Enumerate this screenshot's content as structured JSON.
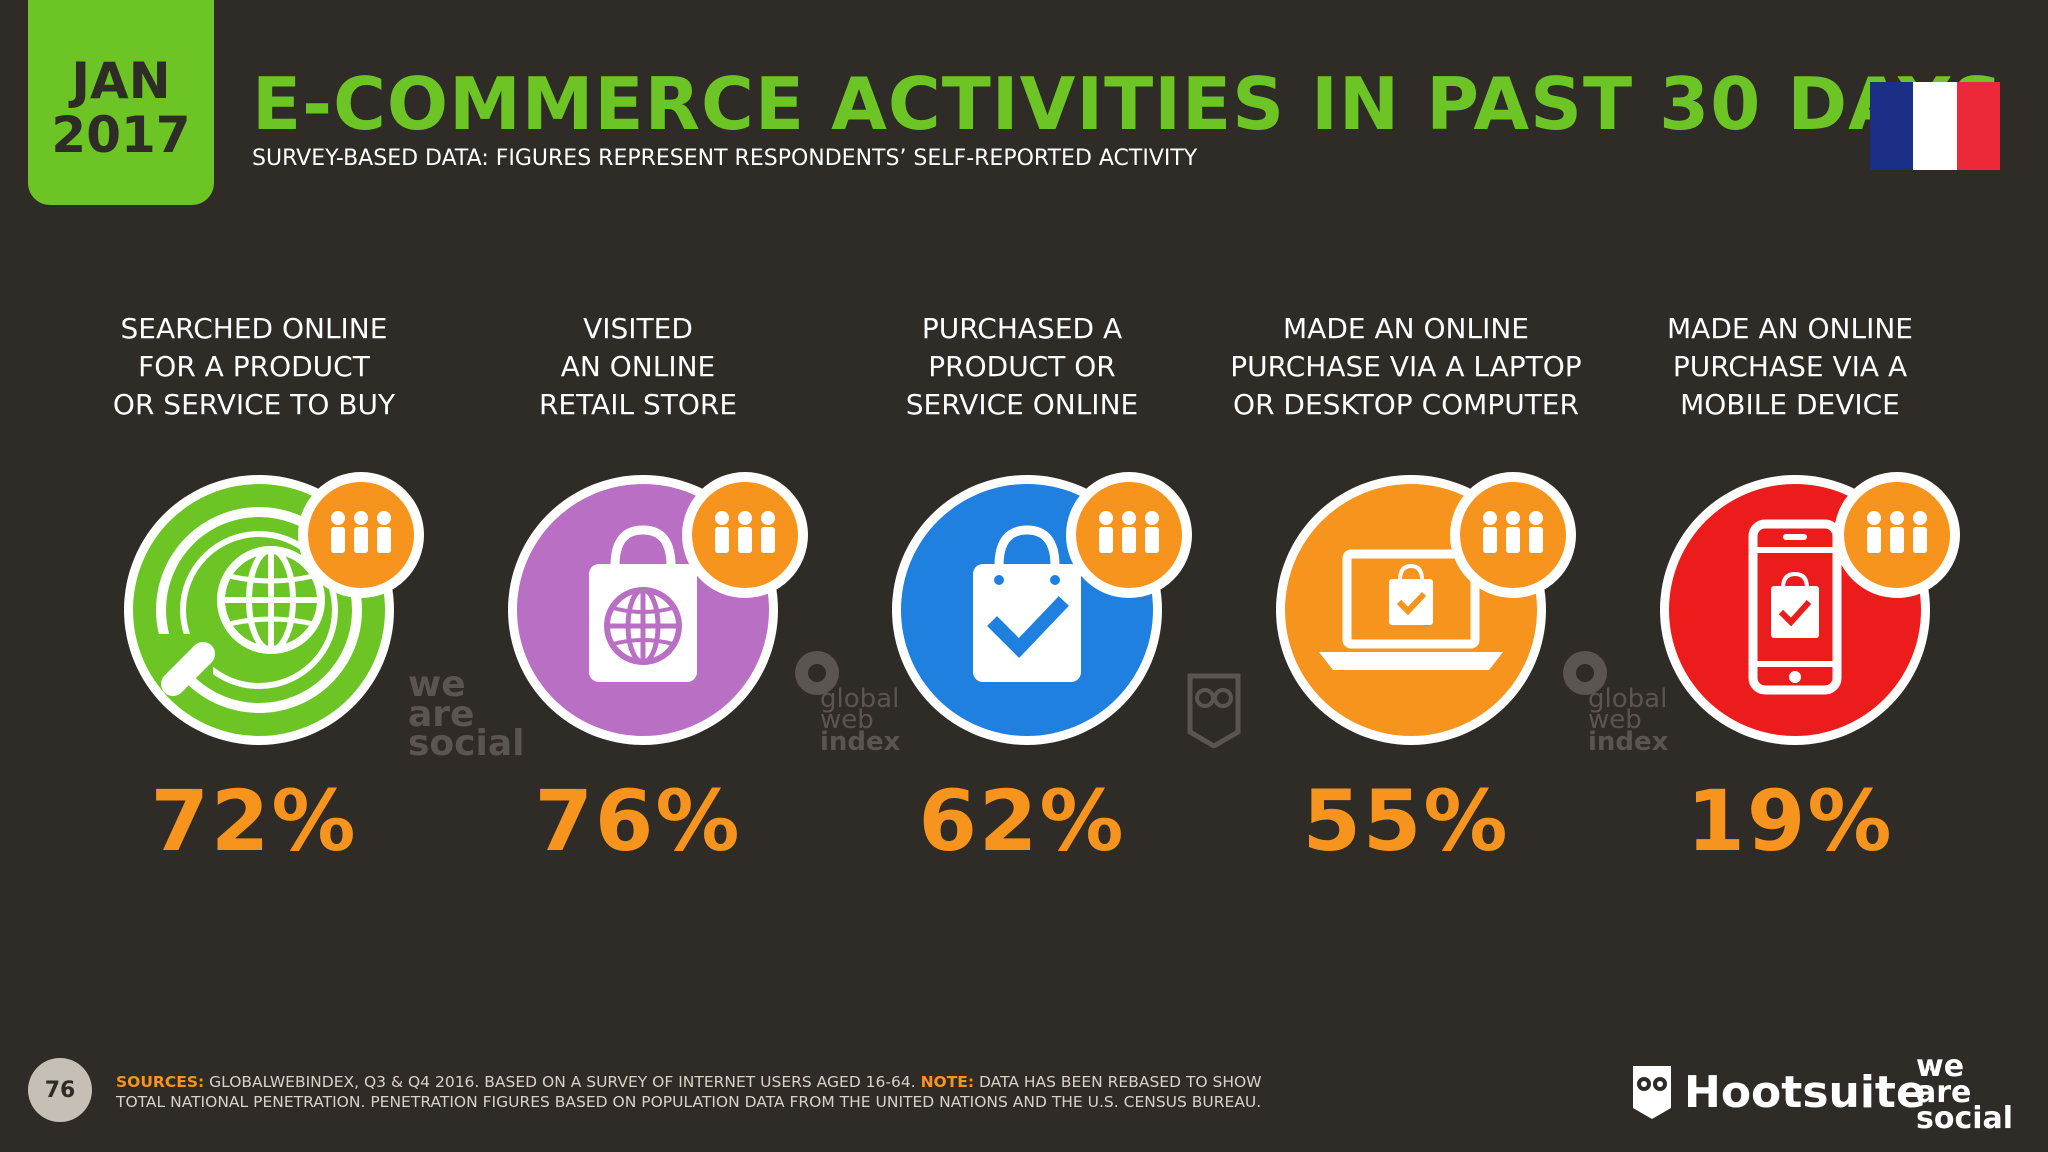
{
  "header": {
    "date_month": "JAN",
    "date_year": "2017",
    "title": "E-COMMERCE ACTIVITIES IN PAST 30 DAYS",
    "subtitle": "SURVEY-BASED DATA: FIGURES REPRESENT RESPONDENTS’ SELF-REPORTED ACTIVITY"
  },
  "flag": {
    "country": "France",
    "colors": [
      "#1c2f87",
      "#ffffff",
      "#ed2939"
    ]
  },
  "colors": {
    "background": "#2f2b27",
    "accent_green": "#6cc524",
    "accent_orange": "#f7941d"
  },
  "activities": [
    {
      "label": "SEARCHED ONLINE\nFOR A PRODUCT\nOR SERVICE TO BUY",
      "value": "72%",
      "icon": "globe-search-icon",
      "color": "#6cc524"
    },
    {
      "label": "VISITED\nAN ONLINE\nRETAIL STORE",
      "value": "76%",
      "icon": "shopping-bag-globe-icon",
      "color": "#b96fc4"
    },
    {
      "label": "PURCHASED A\nPRODUCT OR\nSERVICE ONLINE",
      "value": "62%",
      "icon": "shopping-bag-check-icon",
      "color": "#1f80e0"
    },
    {
      "label": "MADE AN ONLINE\nPURCHASE VIA A LAPTOP\nOR DESKTOP COMPUTER",
      "value": "55%",
      "icon": "laptop-bag-icon",
      "color": "#f7941d"
    },
    {
      "label": "MADE AN ONLINE\nPURCHASE VIA A\nMOBILE DEVICE",
      "value": "19%",
      "icon": "mobile-bag-icon",
      "color": "#ed1c1c"
    }
  ],
  "watermarks": {
    "we_are_social": [
      "we",
      "are",
      "social"
    ],
    "global_web_index": [
      "global",
      "web",
      "index"
    ]
  },
  "footer": {
    "page_number": "76",
    "sources_label": "SOURCES:",
    "sources_text": " GLOBALWEBINDEX, Q3 & Q4 2016. BASED ON A SURVEY OF INTERNET USERS AGED 16-64. ",
    "note_label": "NOTE:",
    "note_text": " DATA HAS BEEN REBASED TO SHOW TOTAL NATIONAL PENETRATION. PENETRATION FIGURES BASED ON POPULATION DATA FROM THE UNITED NATIONS AND THE U.S. CENSUS BUREAU.",
    "hootsuite_brand": "Hootsuite",
    "hootsuite_tm": "™",
    "we_are_social_brand": [
      "we",
      "are",
      "social"
    ]
  }
}
